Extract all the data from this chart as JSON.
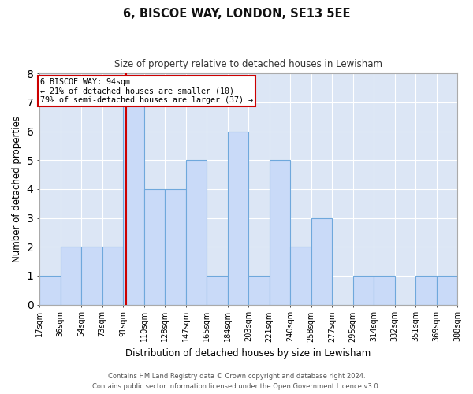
{
  "title1": "6, BISCOE WAY, LONDON, SE13 5EE",
  "title2": "Size of property relative to detached houses in Lewisham",
  "xlabel": "Distribution of detached houses by size in Lewisham",
  "ylabel": "Number of detached properties",
  "annotation_line1": "6 BISCOE WAY: 94sqm",
  "annotation_line2": "← 21% of detached houses are smaller (10)",
  "annotation_line3": "79% of semi-detached houses are larger (37) →",
  "property_value_sqm": 94,
  "bin_edges": [
    17,
    36,
    54,
    73,
    91,
    110,
    128,
    147,
    165,
    184,
    203,
    221,
    240,
    258,
    277,
    295,
    314,
    332,
    351,
    369,
    388
  ],
  "bar_heights": [
    1,
    2,
    2,
    2,
    7,
    4,
    4,
    5,
    1,
    6,
    1,
    5,
    2,
    3,
    0,
    1,
    1,
    0,
    1,
    1
  ],
  "bar_color": "#c9daf8",
  "bar_edge_color": "#6fa8dc",
  "ref_line_color": "#cc0000",
  "ref_line_x": 94,
  "annotation_box_color": "#cc0000",
  "background_color": "#ffffff",
  "plot_bg_color": "#dce6f5",
  "grid_color": "#ffffff",
  "ylim": [
    0,
    8
  ],
  "yticks": [
    0,
    1,
    2,
    3,
    4,
    5,
    6,
    7,
    8
  ],
  "tick_labels": [
    "17sqm",
    "36sqm",
    "54sqm",
    "73sqm",
    "91sqm",
    "110sqm",
    "128sqm",
    "147sqm",
    "165sqm",
    "184sqm",
    "203sqm",
    "221sqm",
    "240sqm",
    "258sqm",
    "277sqm",
    "295sqm",
    "314sqm",
    "332sqm",
    "351sqm",
    "369sqm",
    "388sqm"
  ],
  "footer1": "Contains HM Land Registry data © Crown copyright and database right 2024.",
  "footer2": "Contains public sector information licensed under the Open Government Licence v3.0."
}
